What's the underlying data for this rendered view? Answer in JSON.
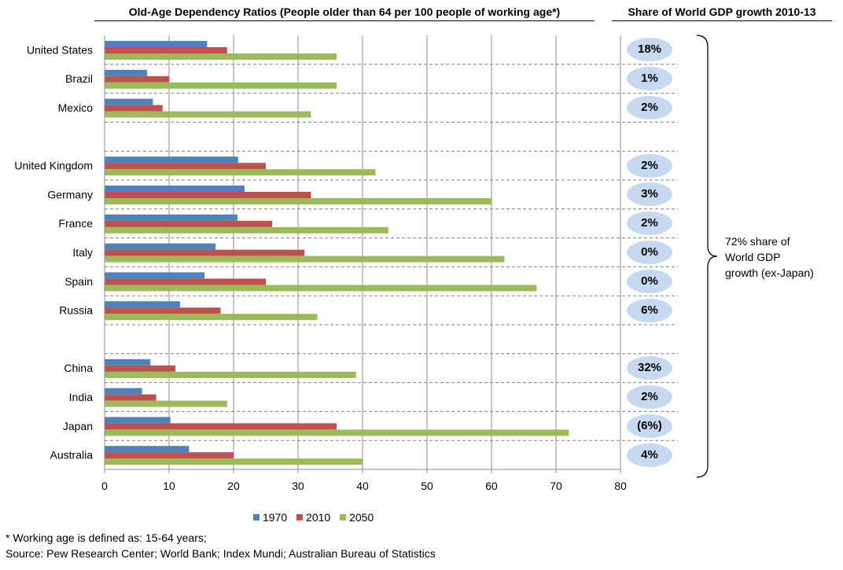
{
  "left_title": "Old-Age Dependency Ratios (People older than 64 per 100 people of working age*)",
  "right_title": "Share of World GDP growth 2010-13",
  "brace_note": [
    "72% share of",
    "World GDP",
    "growth (ex-Japan)"
  ],
  "footnotes": [
    "* Working age is defined as: 15-64 years;",
    "Source: Pew Research Center; World Bank; Index Mundi; Australian Bureau of Statistics"
  ],
  "colors": {
    "1970": "#4f81bd",
    "2010": "#c0504d",
    "2050": "#9bbb59",
    "bubble": "#c6d9f1"
  },
  "chart_data": {
    "type": "bar",
    "orientation": "horizontal",
    "xlim": [
      0,
      80
    ],
    "xticks": [
      0,
      10,
      20,
      30,
      40,
      50,
      60,
      70,
      80
    ],
    "grid": "vertical gridlines",
    "legend_placement": "bottom",
    "groups": [
      [
        "United States",
        "Brazil",
        "Mexico"
      ],
      [
        "United Kingdom",
        "Germany",
        "France",
        "Italy",
        "Spain",
        "Russia"
      ],
      [
        "China",
        "India",
        "Japan",
        "Australia"
      ]
    ],
    "categories": [
      "United States",
      "Brazil",
      "Mexico",
      "United Kingdom",
      "Germany",
      "France",
      "Italy",
      "Spain",
      "Russia",
      "China",
      "India",
      "Japan",
      "Australia"
    ],
    "series": [
      {
        "name": "1970",
        "values": [
          15.9,
          6.6,
          7.5,
          20.7,
          21.7,
          20.6,
          17.2,
          15.5,
          11.7,
          7.1,
          5.8,
          10.2,
          13.1
        ]
      },
      {
        "name": "2010",
        "values": [
          19.0,
          10.0,
          9.0,
          25.0,
          32.0,
          26.0,
          31.0,
          25.0,
          18.0,
          11.0,
          8.0,
          36.0,
          20.0
        ]
      },
      {
        "name": "2050",
        "values": [
          36.0,
          36.0,
          32.0,
          42.0,
          60.0,
          44.0,
          62.0,
          67.0,
          33.0,
          39.0,
          19.0,
          72.0,
          40.0
        ]
      }
    ],
    "gdp_share": [
      "18%",
      "1%",
      "2%",
      "2%",
      "3%",
      "2%",
      "0%",
      "0%",
      "6%",
      "32%",
      "2%",
      "(6%)",
      "4%"
    ]
  }
}
